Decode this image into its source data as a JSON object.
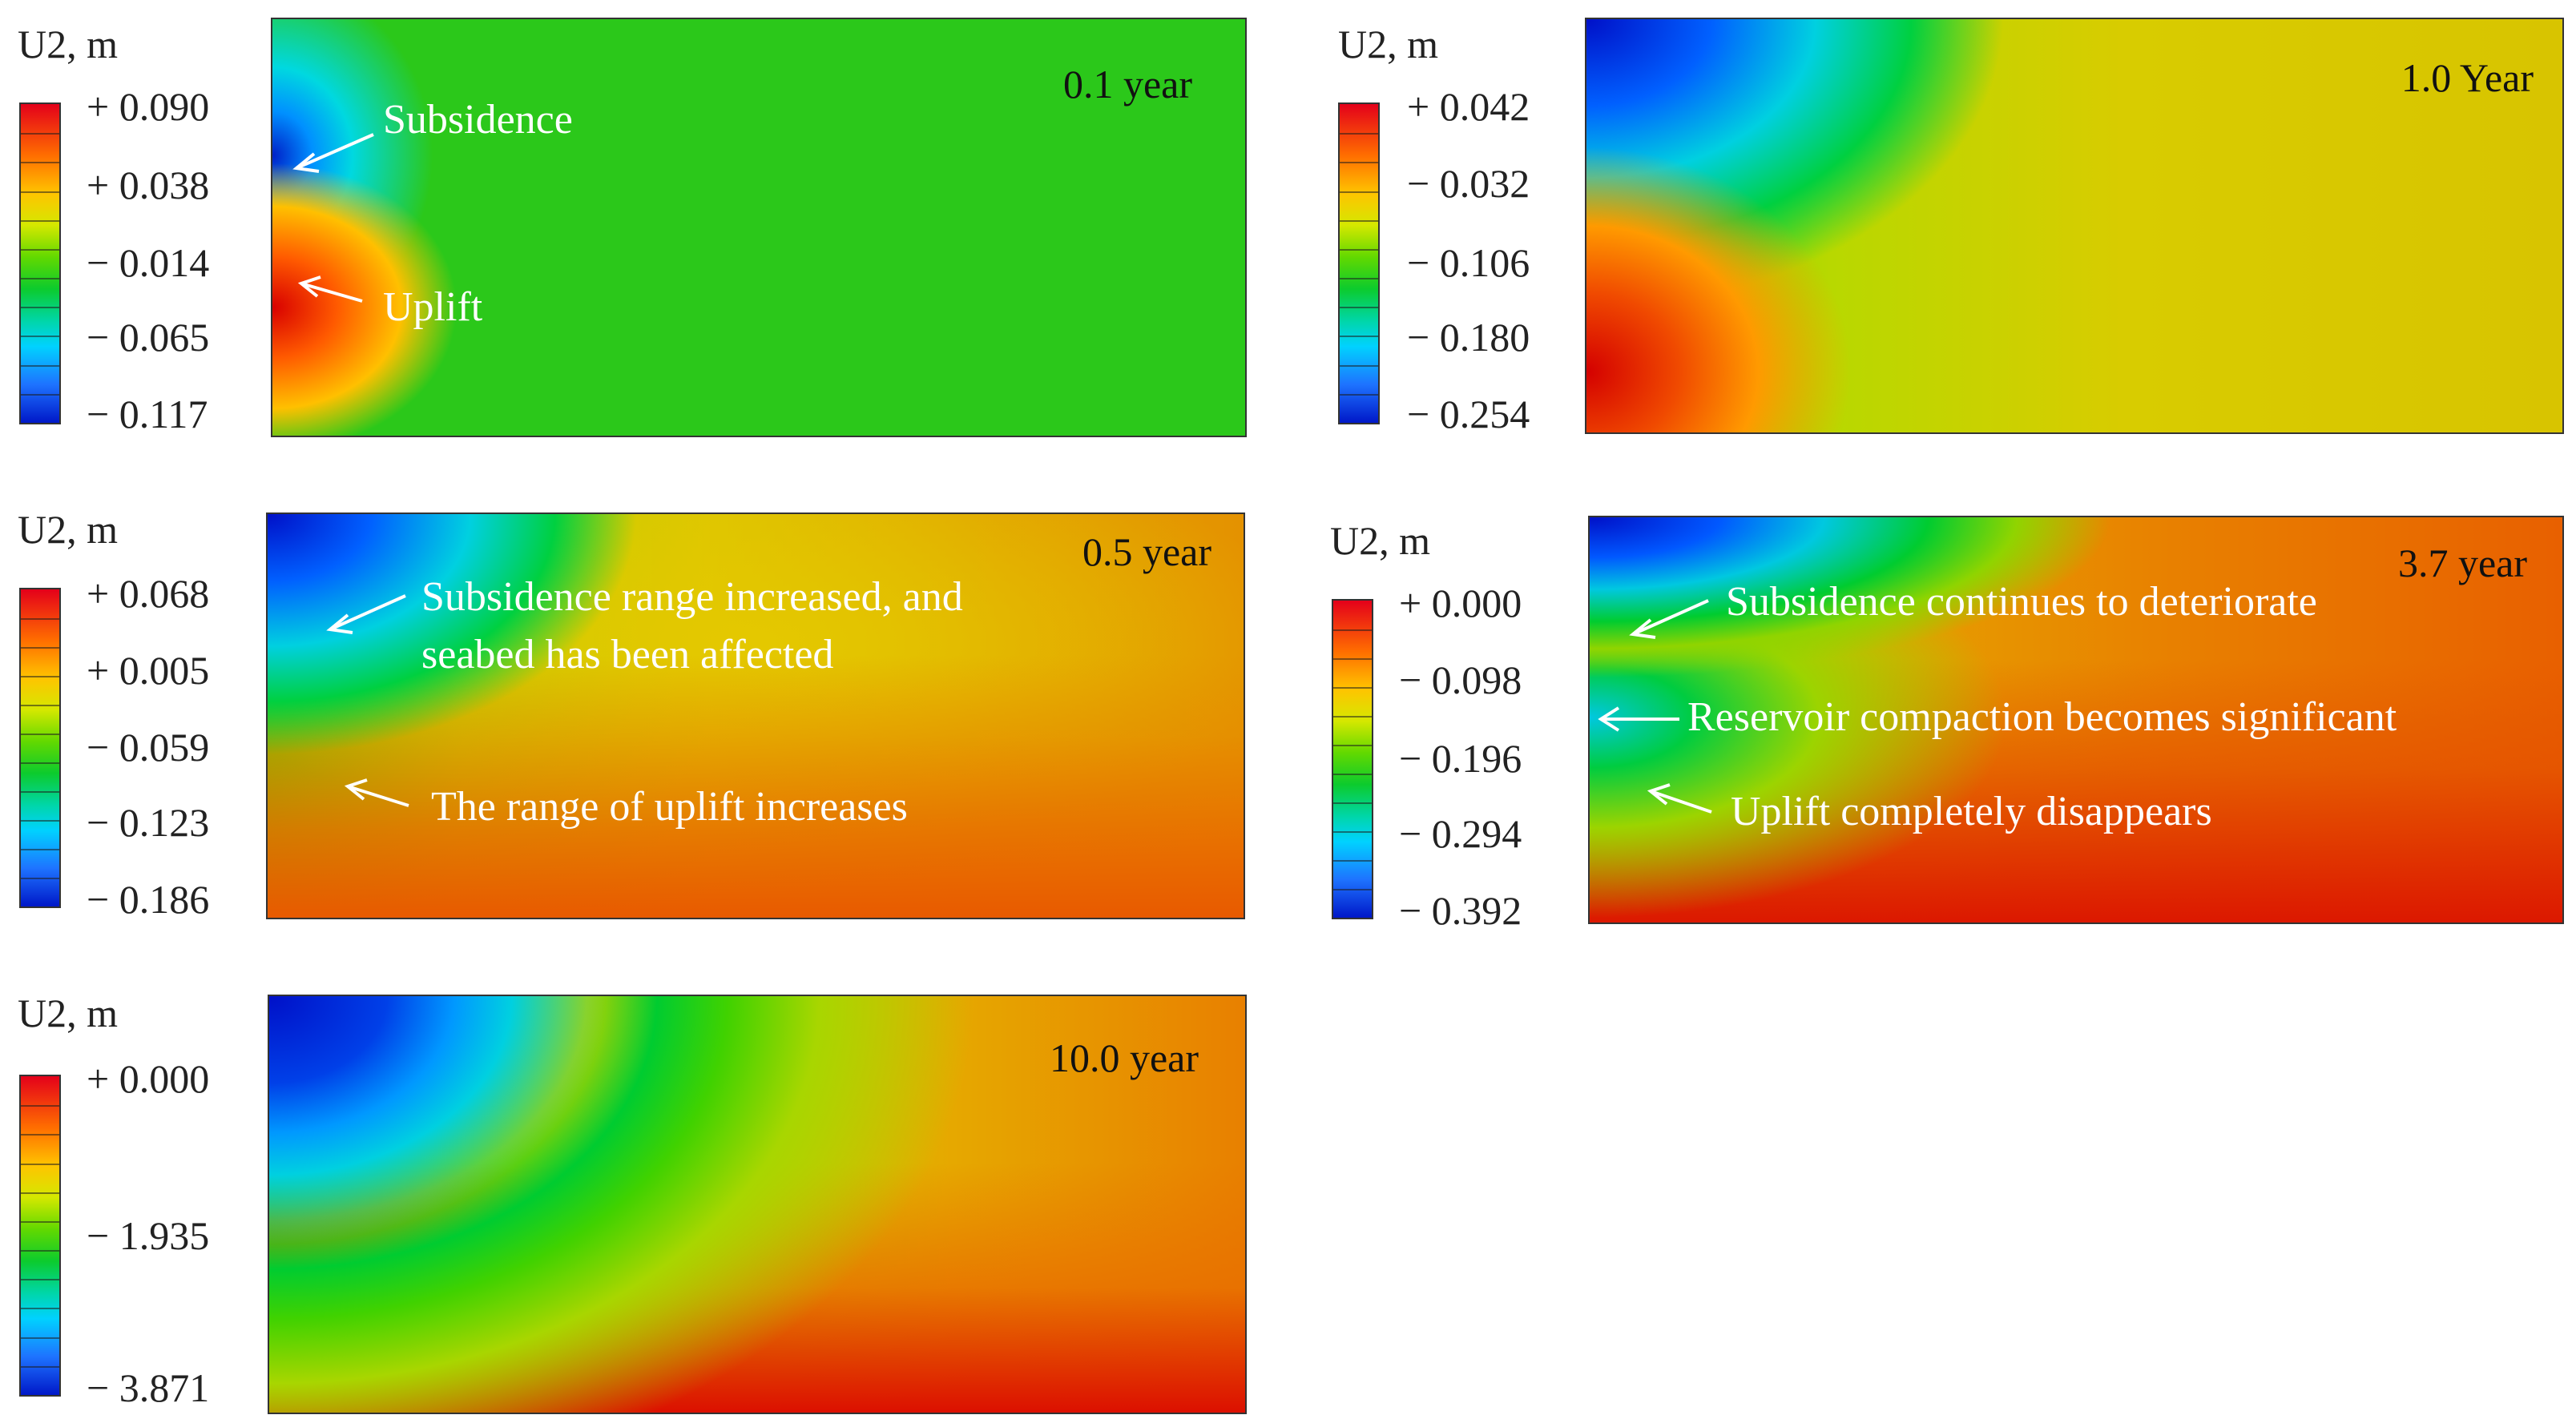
{
  "panels": [
    {
      "unit_label": "U2, m",
      "ticks": [
        "+ 0.090",
        "+ 0.038",
        "− 0.014",
        "− 0.065",
        "− 0.117"
      ],
      "year_label": "0.1 year",
      "annotations": [
        "Subsidence",
        "Uplift"
      ]
    },
    {
      "unit_label": "U2, m",
      "ticks": [
        "+ 0.042",
        "− 0.032",
        "− 0.106",
        "− 0.180",
        "− 0.254"
      ],
      "year_label": "1.0 Year",
      "annotations": []
    },
    {
      "unit_label": "U2, m",
      "ticks": [
        "+ 0.068",
        "+ 0.005",
        "− 0.059",
        "− 0.123",
        "− 0.186"
      ],
      "year_label": "0.5 year",
      "annotations": [
        "Subsidence range increased, and",
        "seabed has been affected",
        "The range of uplift increases"
      ]
    },
    {
      "unit_label": "U2, m",
      "ticks": [
        "+ 0.000",
        "− 0.098",
        "− 0.196",
        "− 0.294",
        "− 0.392"
      ],
      "year_label": "3.7 year",
      "annotations": [
        "Subsidence continues to deteriorate",
        "Reservoir compaction becomes significant",
        "Uplift completely disappears"
      ]
    },
    {
      "unit_label": "U2, m",
      "ticks": [
        "+ 0.000",
        "− 1.935",
        "− 3.871"
      ],
      "year_label": "10.0 year",
      "annotations": []
    }
  ],
  "colors": {
    "arrow": "#ffffff",
    "frame": "#333333"
  }
}
